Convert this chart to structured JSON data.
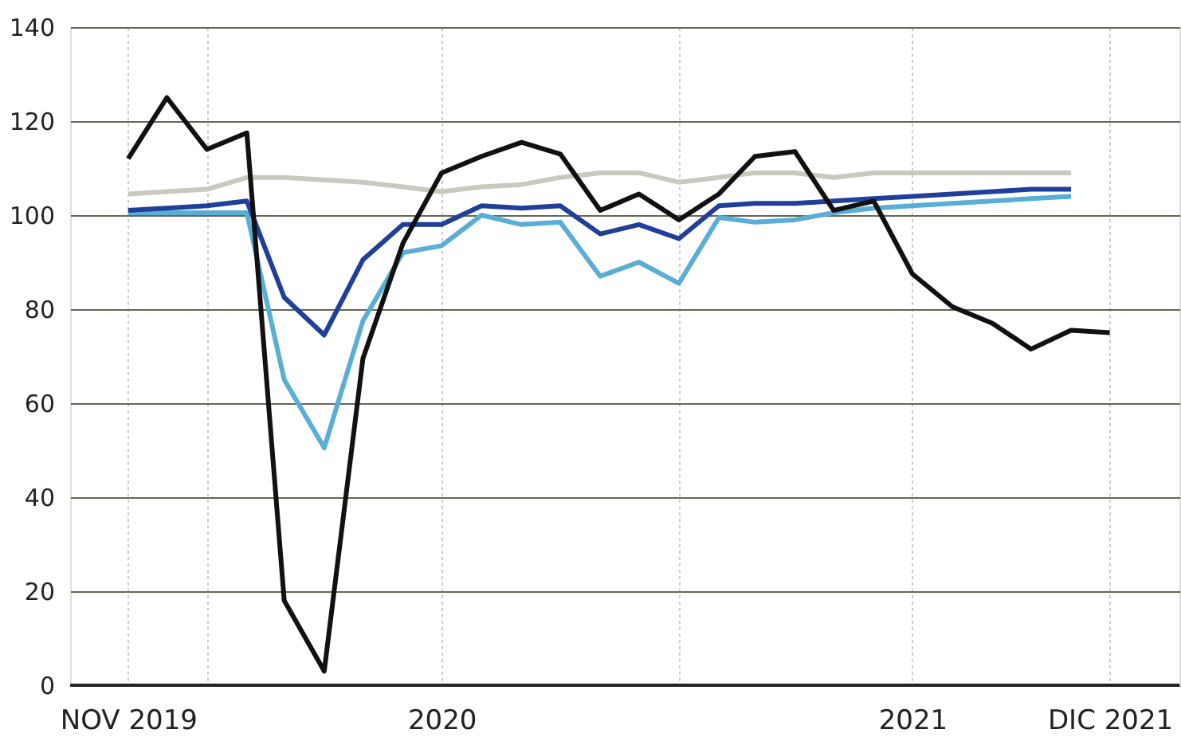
{
  "chart_data": {
    "type": "line",
    "x": [
      "2019-11",
      "2019-12",
      "2020-01",
      "2020-02",
      "2020-03",
      "2020-04",
      "2020-05",
      "2020-06",
      "2020-07",
      "2020-08",
      "2020-09",
      "2020-10",
      "2020-11",
      "2020-12",
      "2021-01",
      "2021-02",
      "2021-03",
      "2021-04",
      "2021-05",
      "2021-06",
      "2021-07",
      "2021-08",
      "2021-09",
      "2021-10",
      "2021-11",
      "2021-12"
    ],
    "series": [
      {
        "color": "#c9c9c0",
        "values": [
          104.5,
          105,
          105.5,
          108,
          108,
          107.5,
          107,
          106,
          105,
          106,
          106.5,
          108,
          109,
          109,
          107,
          108,
          109,
          109,
          108,
          109,
          109,
          109,
          109,
          109,
          109,
          null
        ]
      },
      {
        "color": "#5aaed6",
        "values": [
          100.5,
          100.5,
          100.5,
          100.5,
          65,
          50.5,
          77.5,
          92,
          93.5,
          100,
          98,
          98.5,
          87,
          90,
          85.5,
          99.5,
          98.5,
          99,
          100.5,
          101.5,
          102,
          102.5,
          103,
          103.5,
          104,
          null
        ]
      },
      {
        "color": "#1f3f99",
        "values": [
          101,
          101.5,
          102,
          103,
          82.5,
          74.5,
          90.5,
          98,
          98,
          102,
          101.5,
          102,
          96,
          98,
          95,
          102,
          102.5,
          102.5,
          103,
          103.5,
          104,
          104.5,
          105,
          105.5,
          105.5,
          null
        ]
      },
      {
        "color": "#111111",
        "values": [
          112,
          125,
          114,
          117.5,
          18,
          3,
          69.5,
          94,
          109,
          112.5,
          115.5,
          113,
          101,
          104.5,
          99,
          104.5,
          112.5,
          113.5,
          101,
          103,
          87.5,
          80.5,
          77,
          71.5,
          75.5,
          75
        ]
      }
    ],
    "xlim": [
      "2019-09-17",
      "2022-01-24"
    ],
    "xticks": [
      {
        "value": "2019-11",
        "label": "NOV 2019"
      },
      {
        "value": "2020-01",
        "label": null
      },
      {
        "value": "2020-07",
        "label": "2020"
      },
      {
        "value": "2021-01",
        "label": null
      },
      {
        "value": "2021-07",
        "label": "2021"
      },
      {
        "value": "2021-12",
        "label": "DIC 2021"
      }
    ],
    "ylim": [
      0,
      140
    ],
    "yticks": [
      0,
      20,
      40,
      60,
      80,
      100,
      120,
      140
    ],
    "grid": true
  }
}
